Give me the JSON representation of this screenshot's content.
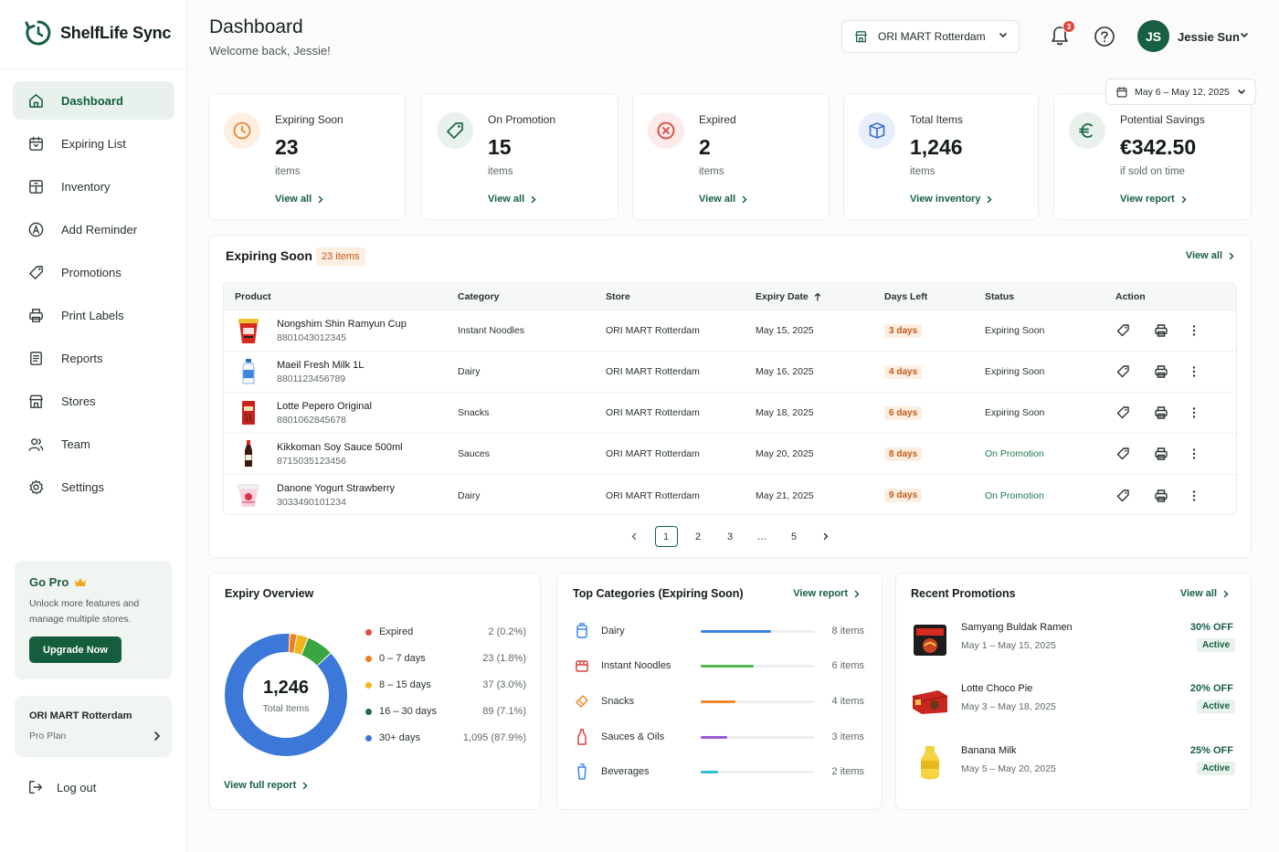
{
  "app": {
    "name": "ShelfLife Sync"
  },
  "sidebar": {
    "items": [
      {
        "label": "Dashboard",
        "icon": "home-icon",
        "active": true
      },
      {
        "label": "Expiring List",
        "icon": "calendar-icon"
      },
      {
        "label": "Inventory",
        "icon": "box-icon"
      },
      {
        "label": "Add Reminder",
        "icon": "alarm-icon"
      },
      {
        "label": "Promotions",
        "icon": "tag-icon"
      },
      {
        "label": "Print Labels",
        "icon": "printer-icon"
      },
      {
        "label": "Reports",
        "icon": "report-icon"
      },
      {
        "label": "Stores",
        "icon": "store-icon"
      },
      {
        "label": "Team",
        "icon": "team-icon"
      },
      {
        "label": "Settings",
        "icon": "gear-icon"
      }
    ],
    "pro": {
      "title": "Go Pro",
      "description": "Unlock more features and manage multiple stores.",
      "button": "Upgrade Now"
    },
    "store": {
      "name": "ORI MART Rotterdam",
      "plan": "Pro Plan"
    },
    "logout": "Log out"
  },
  "header": {
    "title": "Dashboard",
    "subtitle": "Welcome back, Jessie!",
    "store_select": "ORI MART Rotterdam",
    "notifications": "3",
    "user": {
      "initials": "JS",
      "name": "Jessie Sun"
    }
  },
  "date_range": "May 6 – May 12, 2025",
  "stats": [
    {
      "label": "Expiring Soon",
      "value": "23",
      "unit": "items",
      "link": "View all",
      "color": "#e8852e"
    },
    {
      "label": "On Promotion",
      "value": "15",
      "unit": "items",
      "link": "View all",
      "color": "#1f6b45"
    },
    {
      "label": "Expired",
      "value": "2",
      "unit": "items",
      "link": "View all",
      "color": "#d8443c"
    },
    {
      "label": "Total Items",
      "value": "1,246",
      "unit": "items",
      "link": "View inventory",
      "color": "#3f74c9"
    },
    {
      "label": "Potential Savings",
      "value": "€342.50",
      "unit": "if sold on time",
      "link": "View report",
      "color": "#1f6b45"
    }
  ],
  "expiring": {
    "title": "Expiring Soon",
    "badge": "23 items",
    "view_all": "View all",
    "columns": [
      "Product",
      "Category",
      "Store",
      "Expiry Date",
      "Days Left",
      "Status",
      "Action"
    ],
    "rows": [
      {
        "name": "Nongshim Shin Ramyun Cup",
        "code": "8801043012345",
        "category": "Instant Noodles",
        "store": "ORI MART Rotterdam",
        "date": "May 15, 2025",
        "days": "3 days",
        "status": "Expiring Soon"
      },
      {
        "name": "Maeil Fresh Milk 1L",
        "code": "8801123456789",
        "category": "Dairy",
        "store": "ORI MART Rotterdam",
        "date": "May 16, 2025",
        "days": "4 days",
        "status": "Expiring Soon"
      },
      {
        "name": "Lotte Pepero Original",
        "code": "8801062845678",
        "category": "Snacks",
        "store": "ORI MART Rotterdam",
        "date": "May 18, 2025",
        "days": "6 days",
        "status": "Expiring Soon"
      },
      {
        "name": "Kikkoman Soy Sauce 500ml",
        "code": "8715035123456",
        "category": "Sauces",
        "store": "ORI MART Rotterdam",
        "date": "May 20, 2025",
        "days": "8 days",
        "status": "On Promotion"
      },
      {
        "name": "Danone Yogurt Strawberry",
        "code": "3033490101234",
        "category": "Dairy",
        "store": "ORI MART Rotterdam",
        "date": "May 21, 2025",
        "days": "9 days",
        "status": "On Promotion"
      }
    ],
    "pages": [
      "1",
      "2",
      "3",
      "…",
      "5"
    ]
  },
  "overview": {
    "title": "Expiry Overview",
    "total": "1,246",
    "total_label": "Total Items",
    "link": "View full report",
    "legend": [
      {
        "label": "Expired",
        "value": "2 (0.2%)",
        "count": 2,
        "color": "#e24b4b"
      },
      {
        "label": "0 – 7 days",
        "value": "23 (1.8%)",
        "count": 23,
        "color": "#ef7d22"
      },
      {
        "label": "8 – 15 days",
        "value": "37 (3.0%)",
        "count": 37,
        "color": "#f2b51c"
      },
      {
        "label": "16 – 30 days",
        "value": "89 (7.1%)",
        "count": 89,
        "color": "#3aa541"
      },
      {
        "label": "30+ days",
        "value": "1,095 (87.9%)",
        "count": 1095,
        "color": "#3b78d8"
      }
    ]
  },
  "categories": {
    "title": "Top Categories (Expiring Soon)",
    "link": "View report",
    "items": [
      {
        "label": "Dairy",
        "value": "8 items",
        "count": 8,
        "color": "#3a86e6",
        "icon": "milk-icon"
      },
      {
        "label": "Instant Noodles",
        "value": "6 items",
        "count": 6,
        "color": "#4cb84c",
        "icon": "noodle-icon"
      },
      {
        "label": "Snacks",
        "value": "4 items",
        "count": 4,
        "color": "#ef8a2a",
        "icon": "snack-icon"
      },
      {
        "label": "Sauces & Oils",
        "value": "3 items",
        "count": 3,
        "color": "#9b5ad6",
        "icon": "bottle-icon"
      },
      {
        "label": "Beverages",
        "value": "2 items",
        "count": 2,
        "color": "#2fbcd4",
        "icon": "cup-icon"
      }
    ]
  },
  "promotions": {
    "title": "Recent Promotions",
    "link": "View all",
    "items": [
      {
        "name": "Samyang Buldak Ramen",
        "dates": "May 1 – May 15, 2025",
        "off": "30% OFF",
        "status": "Active"
      },
      {
        "name": "Lotte Choco Pie",
        "dates": "May 3 – May 18, 2025",
        "off": "20% OFF",
        "status": "Active"
      },
      {
        "name": "Banana Milk",
        "dates": "May 5 – May 20, 2025",
        "off": "25% OFF",
        "status": "Active"
      }
    ]
  }
}
